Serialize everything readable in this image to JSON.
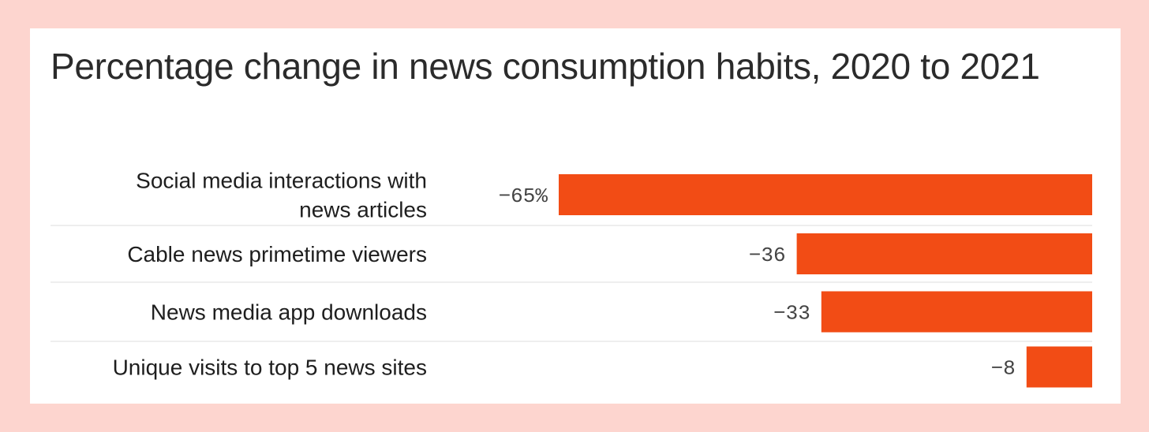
{
  "colors": {
    "background": "#fdd5cf",
    "card": "#ffffff",
    "bar": "#f24c15",
    "divider": "#dddddd",
    "text": "#1e1e1e"
  },
  "chart_data": {
    "type": "bar",
    "orientation": "horizontal",
    "title": "Percentage change in news consumption habits, 2020 to 2021",
    "categories": [
      [
        "Social media interactions with",
        "news articles"
      ],
      [
        "Cable news primetime viewers"
      ],
      [
        "News media app downloads"
      ],
      [
        "Unique visits to top 5 news sites"
      ]
    ],
    "values": [
      -65,
      -36,
      -33,
      -8
    ],
    "value_labels": [
      "−65%",
      "−36",
      "−33",
      "−8"
    ],
    "xlim": [
      -65,
      0
    ],
    "grid": false,
    "legend": "none"
  }
}
